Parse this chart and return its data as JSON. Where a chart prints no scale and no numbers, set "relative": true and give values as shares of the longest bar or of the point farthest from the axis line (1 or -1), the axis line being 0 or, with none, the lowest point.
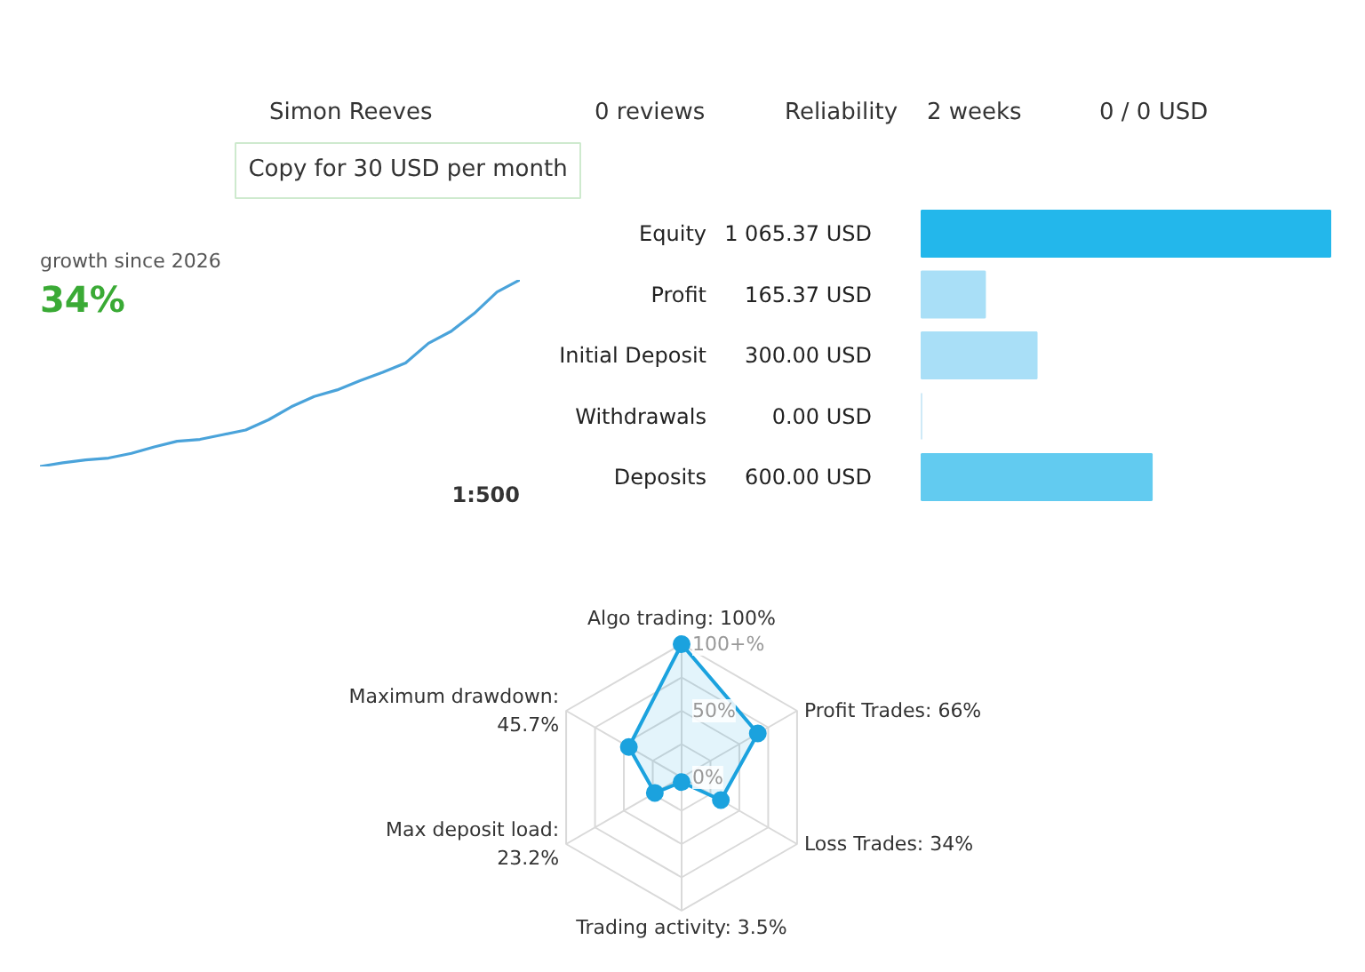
{
  "chart_data": [
    {
      "type": "other",
      "annotations": [
        "Simon Reeves",
        "0 reviews",
        "Reliability",
        "2 weeks",
        "0 / 0 USD",
        "Copy for 30 USD per month"
      ]
    },
    {
      "type": "line",
      "title": "growth since 2026",
      "annotations": [
        "34%",
        "1:500"
      ],
      "relative": true,
      "categories": [
        null,
        null,
        null,
        null,
        null,
        null,
        null,
        null,
        null,
        null,
        null,
        null,
        null,
        null,
        null,
        null,
        null,
        null,
        null,
        null,
        null,
        null
      ],
      "series": [
        {
          "color": "#4aa3da",
          "values": [
            0,
            0.02,
            0.035,
            0.045,
            0.07,
            0.105,
            0.135,
            0.145,
            0.17,
            0.195,
            0.25,
            0.32,
            0.375,
            0.41,
            0.46,
            0.505,
            0.555,
            0.66,
            0.725,
            0.82,
            0.935,
            1
          ]
        }
      ]
    },
    {
      "type": "bar",
      "orientation": "horizontal",
      "categories": [
        "Equity",
        "Profit",
        "Initial Deposit",
        "Withdrawals",
        "Deposits"
      ],
      "values": [
        1065.37,
        165.37,
        300.0,
        0.0,
        600.0
      ],
      "colors": [
        "#23b7eb",
        "#a9dff7",
        "#a9dff7",
        "#cfeaf7",
        "#62cbf0"
      ],
      "value_labels": [
        "1 065.37 USD",
        "165.37 USD",
        "300.00 USD",
        "0.00 USD",
        "600.00 USD"
      ]
    },
    {
      "type": "radar",
      "categories": [
        "Algo trading: 100%",
        "Profit Trades: 66%",
        "Loss Trades: 34%",
        "Trading activity: 3.5%",
        "Max deposit load: 23.2%",
        "Maximum drawdown: 45.7%"
      ],
      "series": [
        {
          "color": "#1ba2de",
          "values": [
            100,
            66,
            34,
            3.5,
            23.2,
            45.7
          ]
        }
      ],
      "ylim": [
        0,
        100
      ],
      "yticks": [
        {
          "value": 0,
          "label": "0%"
        },
        {
          "value": 50,
          "label": "50%"
        },
        {
          "value": 100,
          "label": "100+%"
        }
      ],
      "grid": true,
      "marker": "circle"
    }
  ]
}
